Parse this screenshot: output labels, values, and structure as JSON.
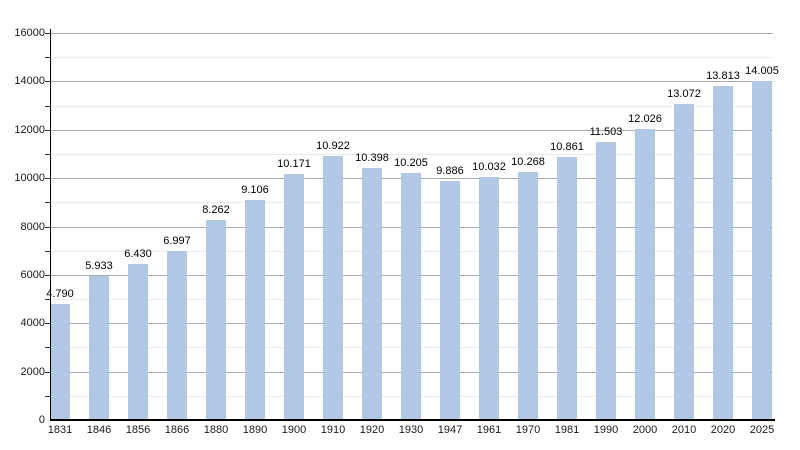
{
  "chart_data": {
    "type": "bar",
    "title": "",
    "categories": [
      "1831",
      "1846",
      "1856",
      "1866",
      "1880",
      "1890",
      "1900",
      "1910",
      "1920",
      "1930",
      "1947",
      "1961",
      "1970",
      "1981",
      "1990",
      "2000",
      "2010",
      "2020",
      "2025"
    ],
    "values": [
      4790,
      5933,
      6430,
      6997,
      8262,
      9106,
      10171,
      10922,
      10398,
      10205,
      9886,
      10032,
      10268,
      10861,
      11503,
      12026,
      13072,
      13813,
      14005
    ],
    "value_labels": [
      "4.790",
      "5.933",
      "6.430",
      "6.997",
      "8.262",
      "9.106",
      "10.171",
      "10.922",
      "10.398",
      "10.205",
      "9.886",
      "10.032",
      "10.268",
      "10.861",
      "11.503",
      "12.026",
      "13.072",
      "13.813",
      "14.005"
    ],
    "xlabel": "",
    "ylabel": "",
    "ylim": [
      0,
      16000
    ],
    "y_major_step": 2000,
    "y_minor_step": 1000,
    "y_tick_labels": [
      "0",
      "2000",
      "4000",
      "6000",
      "8000",
      "10000",
      "12000",
      "14000",
      "16000"
    ],
    "grid": true,
    "legend": "none",
    "colors": {
      "bar_fill": "#b0c8e4",
      "grid_major": "#aaaaaa",
      "grid_minor": "#ebebeb",
      "axis": "#000000",
      "text": "#1a1a1a",
      "background": "#ffffff"
    }
  }
}
